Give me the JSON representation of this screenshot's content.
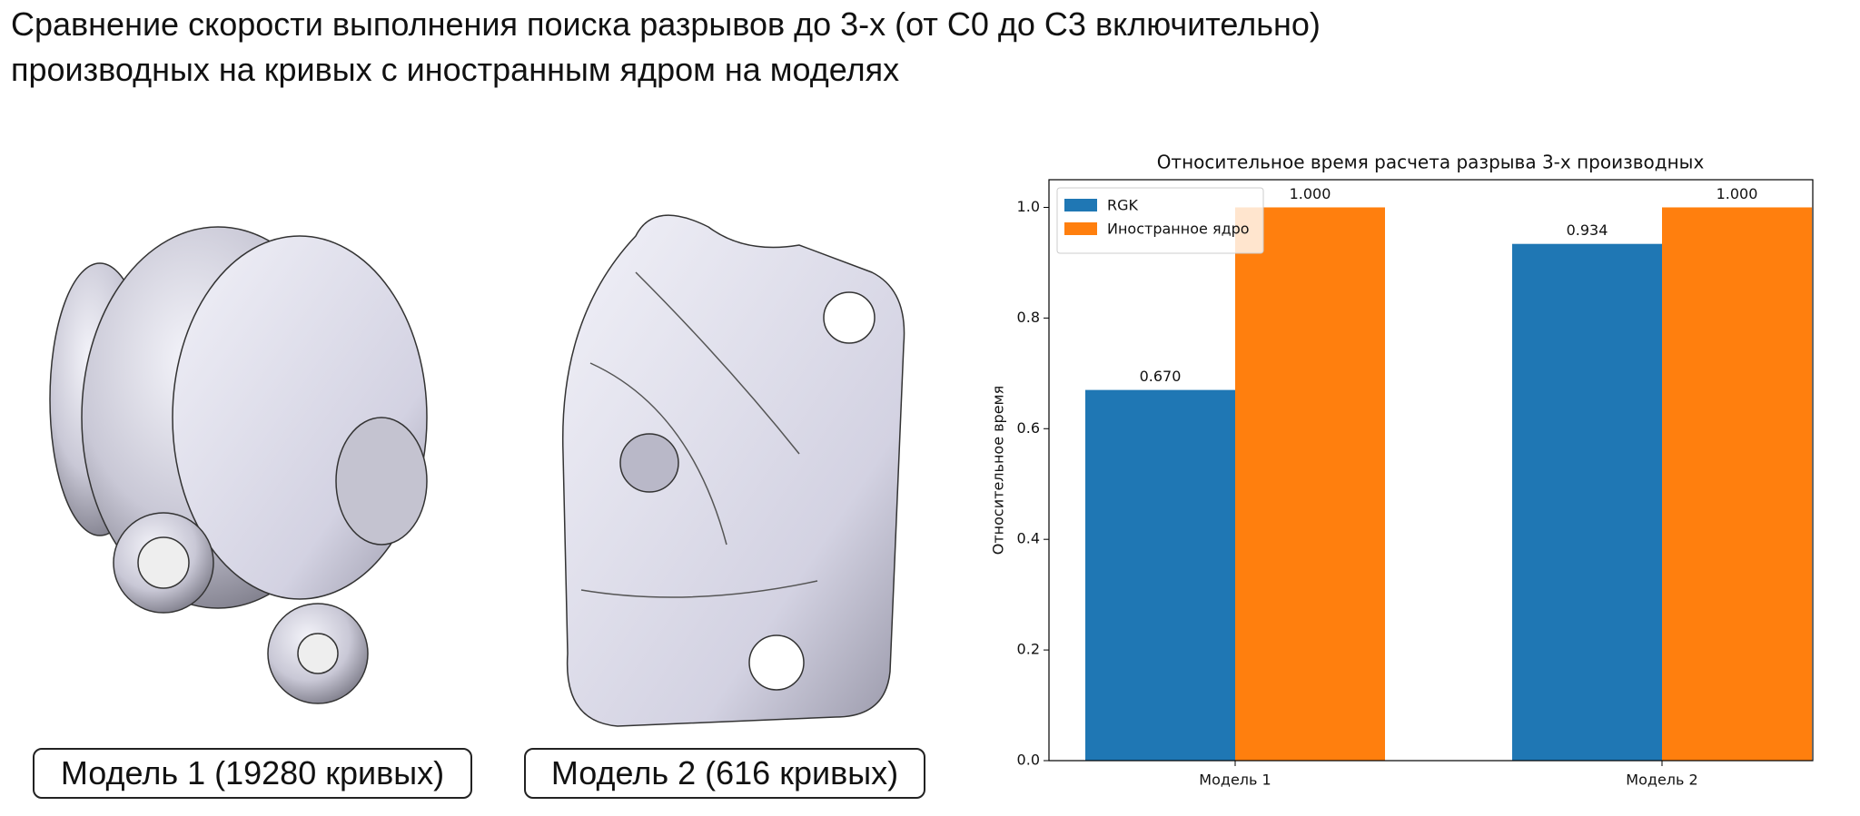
{
  "slide": {
    "title_lines": [
      "Сравнение скорости выполнения поиска разрывов до 3-х (от С0 до С3 включительно)",
      "производных на кривых с иностранным ядром на моделях"
    ],
    "captions": [
      "Модель 1 (19280 кривых)",
      "Модель 2 (616 кривых)"
    ]
  },
  "chart_data": {
    "type": "bar",
    "title": "Относительное время расчета разрыва 3-х производных",
    "y_label": "Относительное время",
    "categories": [
      "Модель 1",
      "Модель 2"
    ],
    "series": [
      {
        "name": "RGK",
        "color": "#1f77b4",
        "values": [
          0.67,
          0.934
        ],
        "value_labels": [
          "0.670",
          "0.934"
        ]
      },
      {
        "name": "Иностранное ядро",
        "color": "#ff7f0e",
        "values": [
          1,
          1
        ],
        "value_labels": [
          "1.000",
          "1.000"
        ]
      }
    ],
    "ylim": [
      0,
      1.05
    ],
    "yticks": [
      {
        "value": 0,
        "label": "0.0"
      },
      0.2,
      0.4,
      0.6,
      0.8,
      {
        "value": 1,
        "label": "1.0"
      }
    ],
    "legend": "upper-left"
  }
}
